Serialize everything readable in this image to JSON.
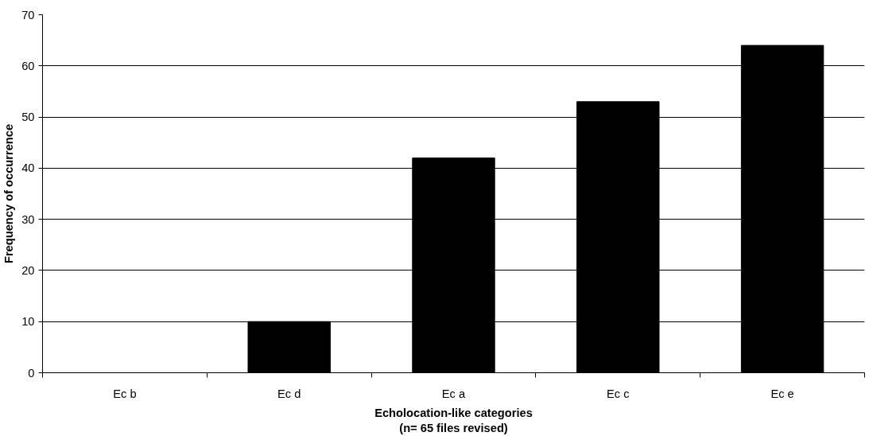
{
  "chart_data": {
    "type": "bar",
    "xlabel": "Echolocation-like categories\n(n= 65 files revised)",
    "ylabel": "Frequency of occurrence",
    "categories": [
      "Ec b",
      "Ec d",
      "Ec a",
      "Ec c",
      "Ec e"
    ],
    "values": [
      0,
      10,
      42,
      53,
      64
    ],
    "color": "#000000",
    "ylim": [
      0,
      70
    ],
    "yticks": [
      0,
      10,
      20,
      30,
      40,
      50,
      60,
      70
    ],
    "grid": "y"
  }
}
